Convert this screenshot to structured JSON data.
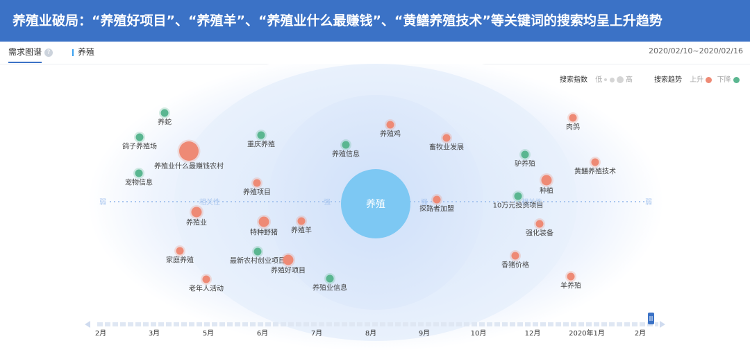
{
  "banner": {
    "title": "养殖业破局：“养殖好项目”、“养殖羊”、“养殖业什么最赚钱”、“黄鳝养殖技术”等关键词的搜索均呈上升趋势"
  },
  "tabs": {
    "main": "需求图谱",
    "help": "?"
  },
  "keyword": "养殖",
  "date_range": "2020/02/10~2020/02/16",
  "legend": {
    "index_label": "搜索指数",
    "low": "低",
    "high": "高",
    "trend_label": "搜索趋势",
    "up": "上升",
    "down": "下降",
    "up_color": "#ee8a75",
    "down_color": "#5ab690"
  },
  "axis": {
    "weak": "弱",
    "relevance": "相关性",
    "strong": "强"
  },
  "center": {
    "label": "养殖",
    "color": "#7dc8f3"
  },
  "nodes": [
    {
      "label": "养蛇",
      "trend": "down",
      "size": "s"
    },
    {
      "label": "鸽子养殖场",
      "trend": "down",
      "size": "s"
    },
    {
      "label": "养殖业什么最赚钱农村",
      "trend": "up",
      "size": "l"
    },
    {
      "label": "宠物信息",
      "trend": "down",
      "size": "s"
    },
    {
      "label": "重庆养殖",
      "trend": "down",
      "size": "s"
    },
    {
      "label": "养殖项目",
      "trend": "up",
      "size": "s"
    },
    {
      "label": "养殖业",
      "trend": "up",
      "size": "m"
    },
    {
      "label": "特种野猪",
      "trend": "up",
      "size": "m"
    },
    {
      "label": "养殖羊",
      "trend": "up",
      "size": "s"
    },
    {
      "label": "家庭养殖",
      "trend": "up",
      "size": "s"
    },
    {
      "label": "最新农村创业项目",
      "trend": "down",
      "size": "s"
    },
    {
      "label": "养殖好项目",
      "trend": "up",
      "size": "m"
    },
    {
      "label": "老年人活动",
      "trend": "up",
      "size": "s"
    },
    {
      "label": "养殖业信息",
      "trend": "down",
      "size": "s"
    },
    {
      "label": "养殖信息",
      "trend": "down",
      "size": "s"
    },
    {
      "label": "养殖鸡",
      "trend": "up",
      "size": "s"
    },
    {
      "label": "畜牧业发展",
      "trend": "up",
      "size": "s"
    },
    {
      "label": "探路者加盟",
      "trend": "up",
      "size": "s"
    },
    {
      "label": "肉鸽",
      "trend": "up",
      "size": "s"
    },
    {
      "label": "驴养殖",
      "trend": "down",
      "size": "s"
    },
    {
      "label": "黄鳝养殖技术",
      "trend": "up",
      "size": "s"
    },
    {
      "label": "种植",
      "trend": "up",
      "size": "m"
    },
    {
      "label": "10万元投资项目",
      "trend": "down",
      "size": "s"
    },
    {
      "label": "强化装备",
      "trend": "up",
      "size": "s"
    },
    {
      "label": "香猪价格",
      "trend": "up",
      "size": "s"
    },
    {
      "label": "羊养殖",
      "trend": "up",
      "size": "s"
    }
  ],
  "timeline": {
    "months": [
      "2月",
      "3月",
      "5月",
      "6月",
      "7月",
      "8月",
      "9月",
      "10月",
      "12月",
      "2020年1月",
      "2月"
    ]
  }
}
